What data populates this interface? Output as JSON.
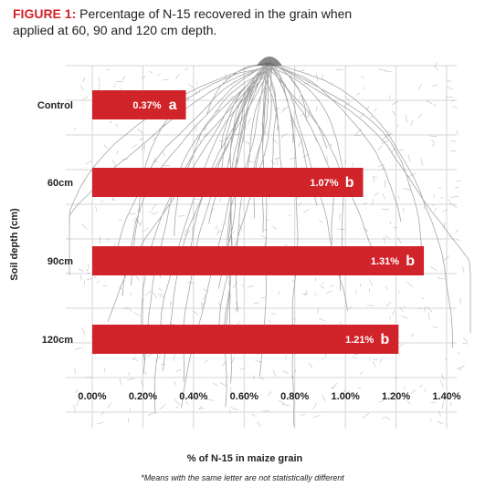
{
  "header": {
    "figure_label": "FIGURE 1:",
    "title_text": "Percentage of N-15 recovered in the grain when applied at 60, 90 and 120 cm depth."
  },
  "footnote": "*Means with the same letter are not statistically different",
  "colors": {
    "bar": "#d1232a",
    "title_accent": "#d1232a",
    "grid": "#d6d6d6",
    "roots": "#8a8a8a"
  },
  "chart_data": {
    "type": "bar",
    "orientation": "horizontal",
    "title": "",
    "xlabel": "% of N-15 in maize grain",
    "ylabel": "Soil depth (cm)",
    "xlim": [
      0,
      1.4
    ],
    "xticks": [
      "0.00%",
      "0.20%",
      "0.40%",
      "0.60%",
      "0.80%",
      "1.00%",
      "1.20%",
      "1.40%"
    ],
    "grid": true,
    "categories": [
      "Control",
      "60cm",
      "90cm",
      "120cm"
    ],
    "values": [
      0.37,
      1.07,
      1.31,
      1.21
    ],
    "value_labels": [
      "0.37%",
      "1.07%",
      "1.31%",
      "1.21%"
    ],
    "significance_letters": [
      "a",
      "b",
      "b",
      "b"
    ],
    "background_image": "maize root system illustration"
  }
}
